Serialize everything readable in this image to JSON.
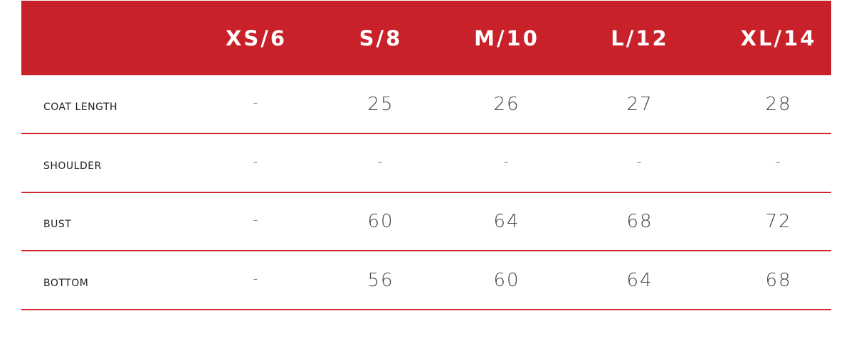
{
  "table": {
    "columns": [
      "XS/6",
      "S/8",
      "M/10",
      "L/12",
      "XL/14"
    ],
    "rows": [
      {
        "label": "COAT LENGTH",
        "cells": [
          "-",
          25,
          26,
          27,
          28
        ]
      },
      {
        "label": "SHOULDER",
        "cells": [
          "-",
          "-",
          "-",
          "-",
          "-"
        ]
      },
      {
        "label": "BUST",
        "cells": [
          "-",
          60,
          64,
          68,
          72
        ]
      },
      {
        "label": "BOTTOM",
        "cells": [
          "-",
          56,
          60,
          64,
          68
        ]
      }
    ]
  }
}
